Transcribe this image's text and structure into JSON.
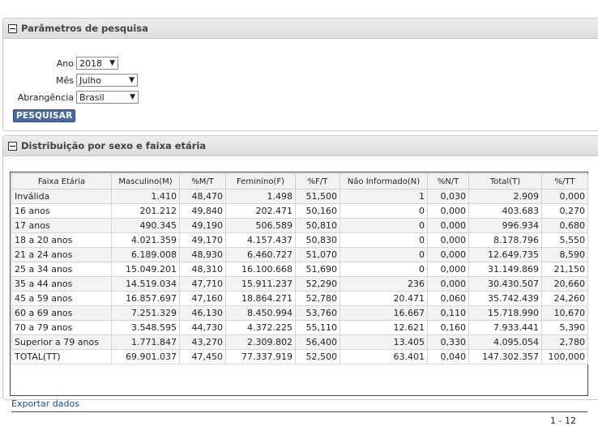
{
  "search_panel": {
    "title": "Parâmetros de pesquisa",
    "ano_label": "Ano",
    "ano_value": "2018",
    "mes_label": "Mês",
    "mes_value": "Julho",
    "abrangencia_label": "Abrangência",
    "abrangencia_value": "Brasil",
    "button_label": "PESQUISAR"
  },
  "results_panel": {
    "title": "Distribuição por sexo e faixa etária",
    "columns": [
      "Faixa Etária",
      "Masculino(M)",
      "%M/T",
      "Feminino(F)",
      "%F/T",
      "Não Informado(N)",
      "%N/T",
      "Total(T)",
      "%/TT"
    ],
    "rows": [
      [
        "Inválida",
        "1.410",
        "48,470",
        "1.498",
        "51,500",
        "1",
        "0,030",
        "2.909",
        "0,000"
      ],
      [
        "16 anos",
        "201.212",
        "49,840",
        "202.471",
        "50,160",
        "0",
        "0,000",
        "403.683",
        "0,270"
      ],
      [
        "17 anos",
        "490.345",
        "49,190",
        "506.589",
        "50,810",
        "0",
        "0,000",
        "996.934",
        "0,680"
      ],
      [
        "18 a 20 anos",
        "4.021.359",
        "49,170",
        "4.157.437",
        "50,830",
        "0",
        "0,000",
        "8.178.796",
        "5,550"
      ],
      [
        "21 a 24 anos",
        "6.189.008",
        "48,930",
        "6.460.727",
        "51,070",
        "0",
        "0,000",
        "12.649.735",
        "8,590"
      ],
      [
        "25 a 34 anos",
        "15.049.201",
        "48,310",
        "16.100.668",
        "51,690",
        "0",
        "0,000",
        "31.149.869",
        "21,150"
      ],
      [
        "35 a 44 anos",
        "14.519.034",
        "47,710",
        "15.911.237",
        "52,290",
        "236",
        "0,000",
        "30.430.507",
        "20,660"
      ],
      [
        "45 a 59 anos",
        "16.857.697",
        "47,160",
        "18.864.271",
        "52,780",
        "20.471",
        "0,060",
        "35.742.439",
        "24,260"
      ],
      [
        "60 a 69 anos",
        "7.251.329",
        "46,130",
        "8.450.994",
        "53,760",
        "16.667",
        "0,110",
        "15.718.990",
        "10,670"
      ],
      [
        "70 a 79 anos",
        "3.548.595",
        "44,730",
        "4.372.225",
        "55,110",
        "12.621",
        "0,160",
        "7.933.441",
        "5,390"
      ],
      [
        "Superior a 79 anos",
        "1.771.847",
        "43,270",
        "2.309.802",
        "56,400",
        "13.405",
        "0,330",
        "4.095.054",
        "2,780"
      ],
      [
        "TOTAL(TT)",
        "69.901.037",
        "47,450",
        "77.337.919",
        "52,500",
        "63.401",
        "0,040",
        "147.302.357",
        "100,000"
      ]
    ],
    "export_label": "Exportar dados",
    "pager_text": "1 - 12"
  }
}
